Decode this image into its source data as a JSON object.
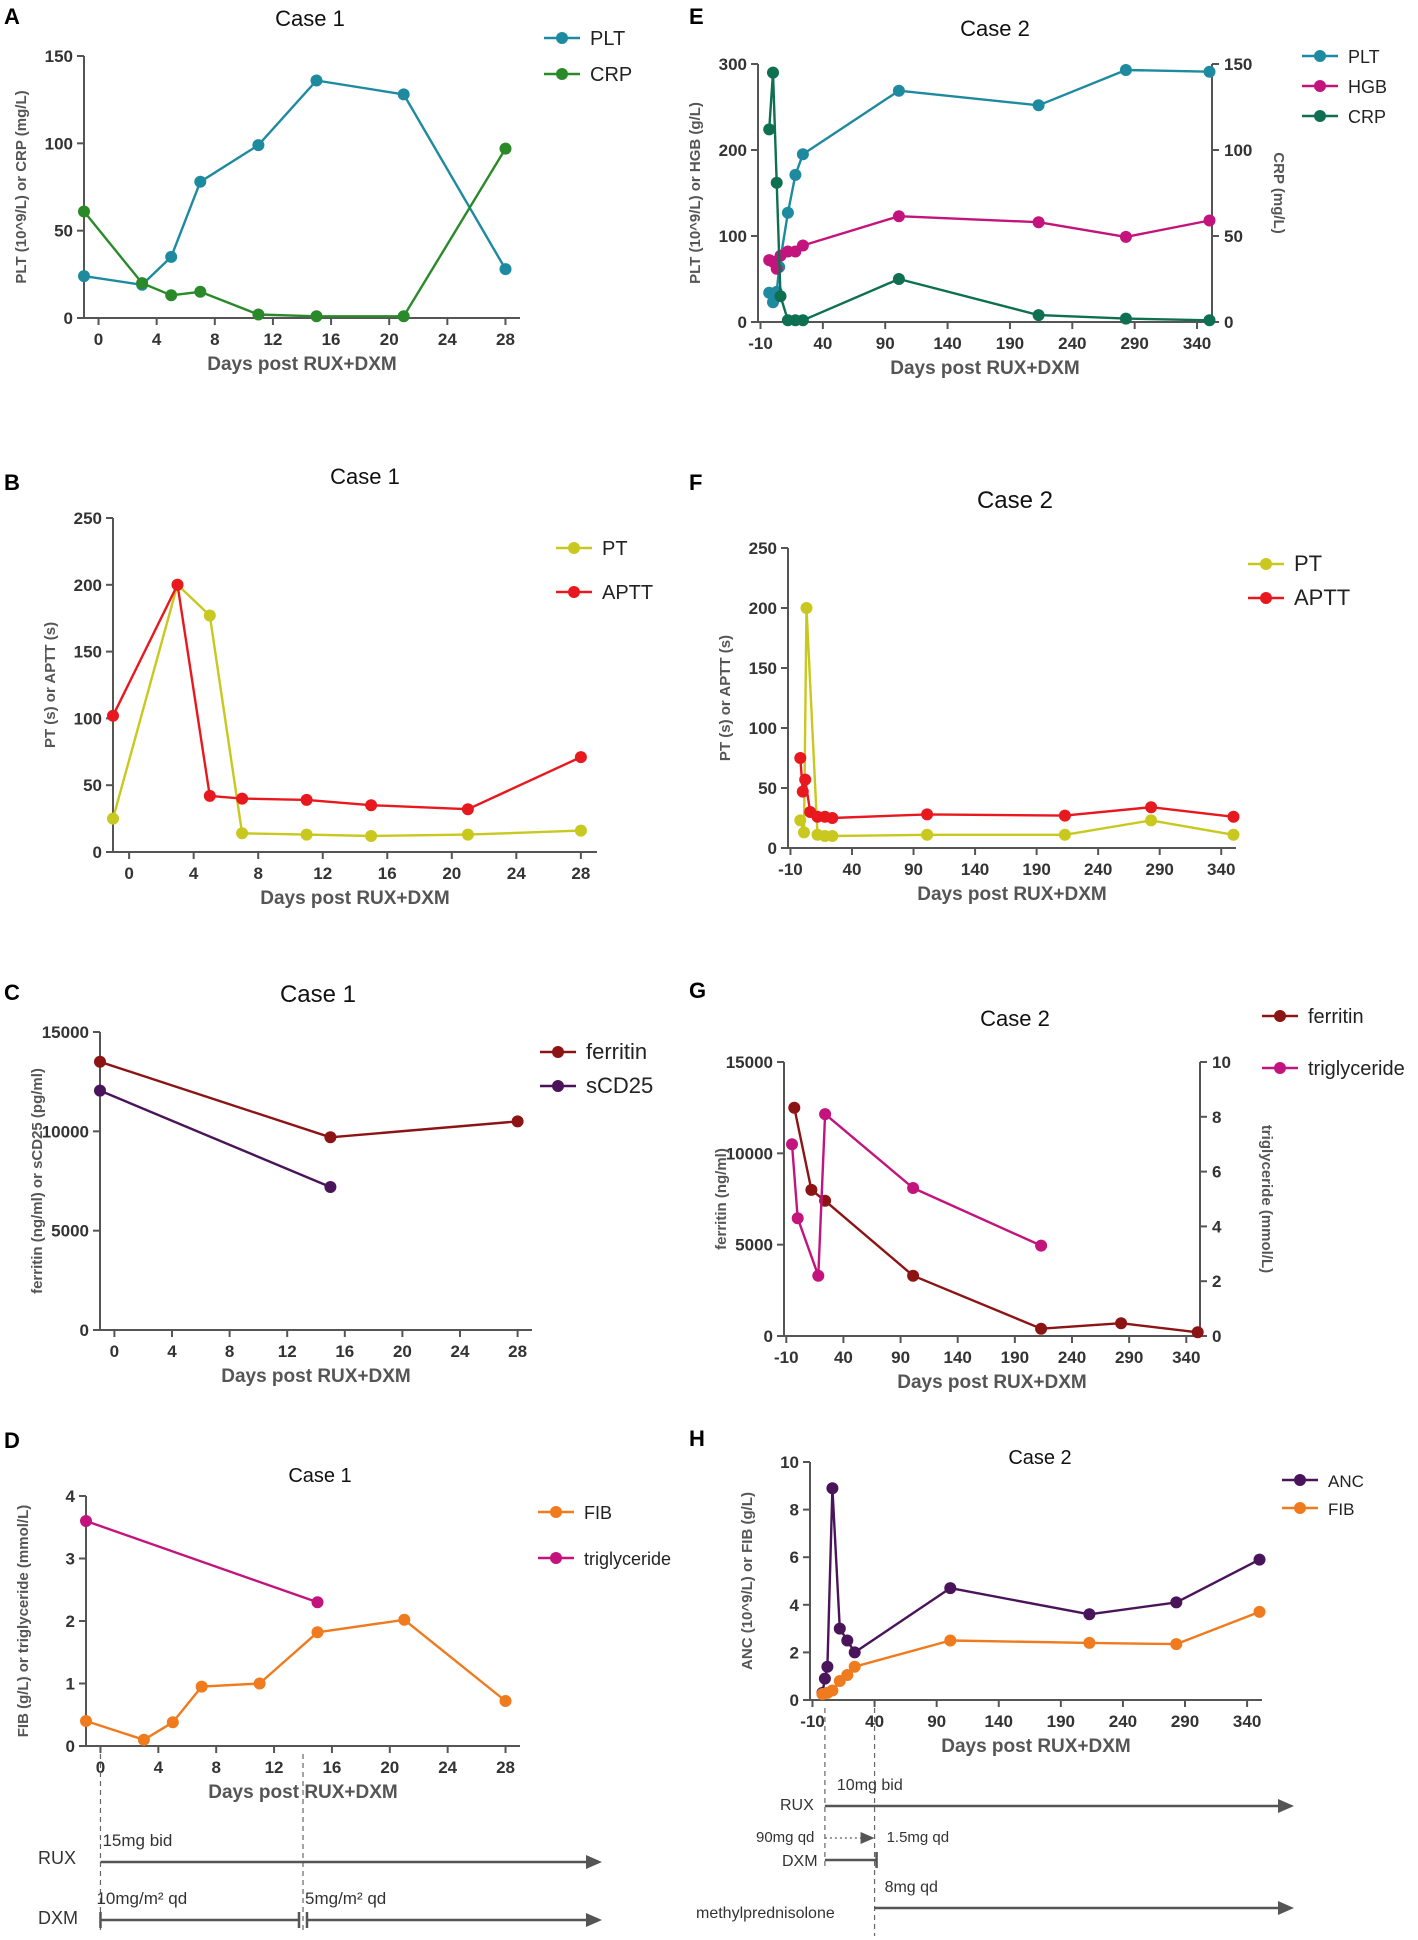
{
  "figure": {
    "panel_labels": [
      "A",
      "B",
      "C",
      "D",
      "E",
      "F",
      "G",
      "H"
    ],
    "colors": {
      "teal": "#1E8AA0",
      "green": "#2A8A2A",
      "olive": "#C8C81E",
      "red": "#E8191E",
      "darkred": "#8C1414",
      "purple": "#4A145A",
      "magenta": "#C2147C",
      "orange": "#F07A1E",
      "darkgreen": "#0E7050",
      "axis": "#555555",
      "text": "#1a1a1a"
    }
  },
  "chart_data": [
    {
      "id": "A",
      "type": "line",
      "title": "Case 1",
      "xlabel": "Days post RUX+DXM",
      "ylabel": "PLT (10^9/L) or CRP (mg/L)",
      "xticks": [
        "0",
        "4",
        "8",
        "12",
        "16",
        "20",
        "24",
        "28"
      ],
      "xtick_values": [
        0,
        4,
        8,
        12,
        16,
        20,
        24,
        28
      ],
      "yticks": [
        "0",
        "50",
        "100",
        "150"
      ],
      "ylim": [
        0,
        150
      ],
      "xlim": [
        -1,
        29
      ],
      "series": [
        {
          "name": "PLT",
          "color": "teal",
          "x": [
            -1,
            3,
            5,
            7,
            11,
            15,
            21,
            28
          ],
          "y": [
            24,
            19,
            35,
            78,
            99,
            136,
            128,
            28
          ]
        },
        {
          "name": "CRP",
          "color": "green",
          "x": [
            -1,
            3,
            5,
            7,
            11,
            15,
            21,
            28
          ],
          "y": [
            61,
            20,
            13,
            15,
            2,
            1,
            1,
            97
          ]
        }
      ]
    },
    {
      "id": "B",
      "type": "line",
      "title": "Case 1",
      "xlabel": "Days post RUX+DXM",
      "ylabel": "PT (s) or APTT (s)",
      "xticks": [
        "0",
        "4",
        "8",
        "12",
        "16",
        "20",
        "24",
        "28"
      ],
      "xtick_values": [
        0,
        4,
        8,
        12,
        16,
        20,
        24,
        28
      ],
      "yticks": [
        "0",
        "50",
        "100",
        "150",
        "200",
        "250"
      ],
      "ylim": [
        0,
        250
      ],
      "xlim": [
        -1,
        29
      ],
      "series": [
        {
          "name": "PT",
          "color": "olive",
          "x": [
            -1,
            3,
            5,
            7,
            11,
            15,
            21,
            28
          ],
          "y": [
            25,
            200,
            177,
            14,
            13,
            12,
            13,
            16
          ]
        },
        {
          "name": "APTT",
          "color": "red",
          "x": [
            -1,
            3,
            5,
            7,
            11,
            15,
            21,
            28
          ],
          "y": [
            102,
            200,
            42,
            40,
            39,
            35,
            32,
            71
          ]
        }
      ]
    },
    {
      "id": "C",
      "type": "line",
      "title": "Case 1",
      "xlabel": "Days post RUX+DXM",
      "ylabel": "ferritin (ng/ml) or sCD25 (pg/ml)",
      "xticks": [
        "0",
        "4",
        "8",
        "12",
        "16",
        "20",
        "24",
        "28"
      ],
      "xtick_values": [
        0,
        4,
        8,
        12,
        16,
        20,
        24,
        28
      ],
      "yticks": [
        "0",
        "5000",
        "10000",
        "15000"
      ],
      "ylim": [
        0,
        15000
      ],
      "xlim": [
        -1,
        29
      ],
      "series": [
        {
          "name": "ferritin",
          "color": "darkred",
          "x": [
            -1,
            15,
            28
          ],
          "y": [
            13500,
            9700,
            10500
          ]
        },
        {
          "name": "sCD25",
          "color": "purple",
          "x": [
            -1,
            15
          ],
          "y": [
            12050,
            7200
          ]
        }
      ]
    },
    {
      "id": "D",
      "type": "line",
      "title": "Case 1",
      "xlabel": "Days post RUX+DXM",
      "ylabel": "FIB (g/L)  or triglyceride (mmol/L)",
      "xticks": [
        "0",
        "4",
        "8",
        "12",
        "16",
        "20",
        "24",
        "28"
      ],
      "xtick_values": [
        0,
        4,
        8,
        12,
        16,
        20,
        24,
        28
      ],
      "yticks": [
        "0",
        "1",
        "2",
        "3",
        "4"
      ],
      "ylim": [
        0,
        4
      ],
      "xlim": [
        -1,
        29
      ],
      "series": [
        {
          "name": "FIB",
          "color": "orange",
          "x": [
            -1,
            3,
            5,
            7,
            11,
            15,
            21,
            28
          ],
          "y": [
            0.4,
            0.1,
            0.38,
            0.95,
            1.0,
            1.82,
            2.02,
            0.72
          ]
        },
        {
          "name": "triglyceride",
          "color": "magenta",
          "x": [
            -1,
            15
          ],
          "y": [
            3.6,
            2.3
          ]
        }
      ],
      "timeline": {
        "rows": [
          "RUX",
          "DXM"
        ],
        "bars": [
          {
            "row": "RUX",
            "label": "15mg bid",
            "from": 0,
            "to": "end"
          },
          {
            "row": "DXM",
            "label": "10mg/m² qd",
            "from": 0,
            "to": 14
          },
          {
            "row": "DXM",
            "label": "5mg/m² qd",
            "from": 14,
            "to": "end"
          }
        ]
      }
    },
    {
      "id": "E",
      "type": "line",
      "title": "Case 2",
      "xlabel": "Days post RUX+DXM",
      "ylabel": "PLT (10^9/L) or HGB (g/L)",
      "y2label": "CRP (mg/L)",
      "xticks": [
        "-10",
        "40",
        "90",
        "140",
        "190",
        "240",
        "290",
        "340"
      ],
      "xtick_values": [
        -10,
        40,
        90,
        140,
        190,
        240,
        290,
        340
      ],
      "yticks": [
        "0",
        "100",
        "200",
        "300"
      ],
      "ylim": [
        0,
        300
      ],
      "y2ticks": [
        "0",
        "50",
        "100",
        "150"
      ],
      "y2lim": [
        0,
        150
      ],
      "xlim": [
        -12,
        352
      ],
      "series": [
        {
          "name": "PLT",
          "color": "teal",
          "axis": "left",
          "x": [
            -3,
            0,
            3,
            5,
            12,
            18,
            24,
            101,
            213,
            283,
            350
          ],
          "y": [
            34,
            23,
            35,
            64,
            127,
            171,
            195,
            269,
            252,
            293,
            291
          ]
        },
        {
          "name": "HGB",
          "color": "magenta",
          "axis": "left",
          "x": [
            -3,
            0,
            3,
            6,
            12,
            18,
            24,
            101,
            213,
            283,
            350
          ],
          "y": [
            72,
            70,
            62,
            77,
            82,
            82,
            89,
            123,
            116,
            99,
            118
          ]
        },
        {
          "name": "CRP",
          "color": "darkgreen",
          "axis": "right",
          "x": [
            -3,
            0,
            3,
            6,
            12,
            18,
            24,
            101,
            213,
            283,
            350
          ],
          "y": [
            112,
            145,
            81,
            15,
            1,
            1,
            1,
            25,
            4,
            2,
            1
          ]
        }
      ]
    },
    {
      "id": "F",
      "type": "line",
      "title": "Case 2",
      "xlabel": "Days post RUX+DXM",
      "ylabel": "PT (s) or APTT (s)",
      "xticks": [
        "-10",
        "40",
        "90",
        "140",
        "190",
        "240",
        "290",
        "340"
      ],
      "xtick_values": [
        -10,
        40,
        90,
        140,
        190,
        240,
        290,
        340
      ],
      "yticks": [
        "0",
        "50",
        "100",
        "150",
        "200",
        "250"
      ],
      "ylim": [
        0,
        250
      ],
      "xlim": [
        -12,
        352
      ],
      "series": [
        {
          "name": "PT",
          "color": "olive",
          "x": [
            -2,
            1,
            3,
            12,
            18,
            24,
            101,
            213,
            283,
            350
          ],
          "y": [
            23,
            13,
            200,
            11,
            10,
            10,
            11,
            11,
            23,
            11
          ]
        },
        {
          "name": "APTT",
          "color": "red",
          "x": [
            -2,
            0,
            2,
            6,
            12,
            18,
            24,
            101,
            213,
            283,
            350
          ],
          "y": [
            75,
            47,
            57,
            30,
            26,
            26,
            25,
            28,
            27,
            34,
            26
          ]
        }
      ]
    },
    {
      "id": "G",
      "type": "line",
      "title": "Case 2",
      "xlabel": "Days post RUX+DXM",
      "ylabel": "ferritin (ng/ml)",
      "y2label": "triglyceride (mmol/L)",
      "xticks": [
        "-10",
        "40",
        "90",
        "140",
        "190",
        "240",
        "290",
        "340"
      ],
      "xtick_values": [
        -10,
        40,
        90,
        140,
        190,
        240,
        290,
        340
      ],
      "yticks": [
        "0",
        "5000",
        "10000",
        "15000"
      ],
      "ylim": [
        0,
        15000
      ],
      "y2ticks": [
        "0",
        "2",
        "4",
        "6",
        "8",
        "10"
      ],
      "y2lim": [
        0,
        10
      ],
      "xlim": [
        -12,
        352
      ],
      "series": [
        {
          "name": "ferritin",
          "color": "darkred",
          "axis": "left",
          "x": [
            -3,
            12,
            24,
            101,
            213,
            283,
            350
          ],
          "y": [
            12500,
            8000,
            7400,
            3300,
            400,
            700,
            200
          ]
        },
        {
          "name": "triglyceride",
          "color": "magenta",
          "axis": "right",
          "x": [
            -5,
            0,
            18,
            24,
            101,
            213
          ],
          "y": [
            7.0,
            4.3,
            2.2,
            8.1,
            5.4,
            3.3
          ]
        }
      ]
    },
    {
      "id": "H",
      "type": "line",
      "title": "Case 2",
      "xlabel": "Days post RUX+DXM",
      "ylabel": "ANC (10^9/L) or FIB (g/L)",
      "xticks": [
        "-10",
        "40",
        "90",
        "140",
        "190",
        "240",
        "290",
        "340"
      ],
      "xtick_values": [
        -10,
        40,
        90,
        140,
        190,
        240,
        290,
        340
      ],
      "yticks": [
        "0",
        "2",
        "4",
        "6",
        "8",
        "10"
      ],
      "ylim": [
        0,
        10
      ],
      "xlim": [
        -12,
        352
      ],
      "series": [
        {
          "name": "ANC",
          "color": "purple",
          "x": [
            -2,
            0,
            2,
            6,
            12,
            18,
            24,
            101,
            213,
            283,
            350
          ],
          "y": [
            0.3,
            0.9,
            1.4,
            8.9,
            3.0,
            2.5,
            2.0,
            4.7,
            3.6,
            4.1,
            5.9
          ]
        },
        {
          "name": "FIB",
          "color": "orange",
          "x": [
            -2,
            2,
            6,
            12,
            18,
            24,
            101,
            213,
            283,
            350
          ],
          "y": [
            0.25,
            0.3,
            0.4,
            0.8,
            1.05,
            1.4,
            2.5,
            2.4,
            2.35,
            3.7
          ]
        }
      ],
      "timeline": {
        "rows": [
          "RUX",
          "DXM",
          "methylprednisolone"
        ],
        "bars": [
          {
            "row": "RUX",
            "label": "10mg bid",
            "from": 0,
            "to": "end"
          },
          {
            "row": "DXM",
            "label": "90mg qd",
            "from": 0,
            "to": 40
          },
          {
            "row": "DXM",
            "label": "1.5mg qd",
            "from": 40,
            "to": 40
          },
          {
            "row": "methylprednisolone",
            "label": "8mg qd",
            "from": 40,
            "to": "end"
          }
        ]
      }
    }
  ]
}
